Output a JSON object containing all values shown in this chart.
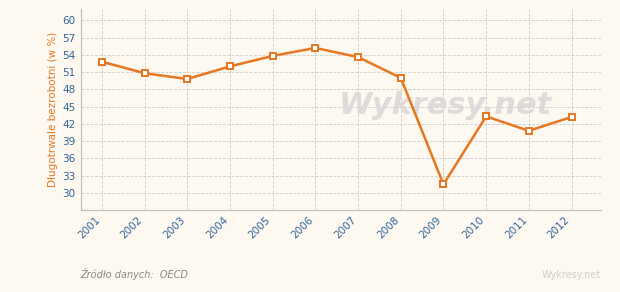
{
  "years": [
    2001,
    2002,
    2003,
    2004,
    2005,
    2006,
    2007,
    2008,
    2009,
    2010,
    2011,
    2012
  ],
  "values": [
    52.8,
    50.8,
    49.8,
    52.0,
    53.8,
    55.2,
    53.6,
    50.0,
    31.5,
    43.3,
    40.8,
    43.2
  ],
  "line_color": "#e87722",
  "marker_face": "#ffffff",
  "marker_edge": "#e87722",
  "bg_color": "#fdf8f0",
  "grid_color": "#cccccc",
  "ylabel": "Długotrwale bezrobotni (w %)",
  "ylabel_color": "#e87722",
  "tick_color": "#336699",
  "xlabel_color": "#336699",
  "ylim_min": 27,
  "ylim_max": 62,
  "yticks": [
    30,
    33,
    36,
    39,
    42,
    45,
    48,
    51,
    54,
    57,
    60
  ],
  "source_text": "Źródło danych:  OECD",
  "watermark_text": "Wykresy.net",
  "source_color": "#888888",
  "watermark_color": "#d0d0d0",
  "spine_color": "#bbbbbb"
}
